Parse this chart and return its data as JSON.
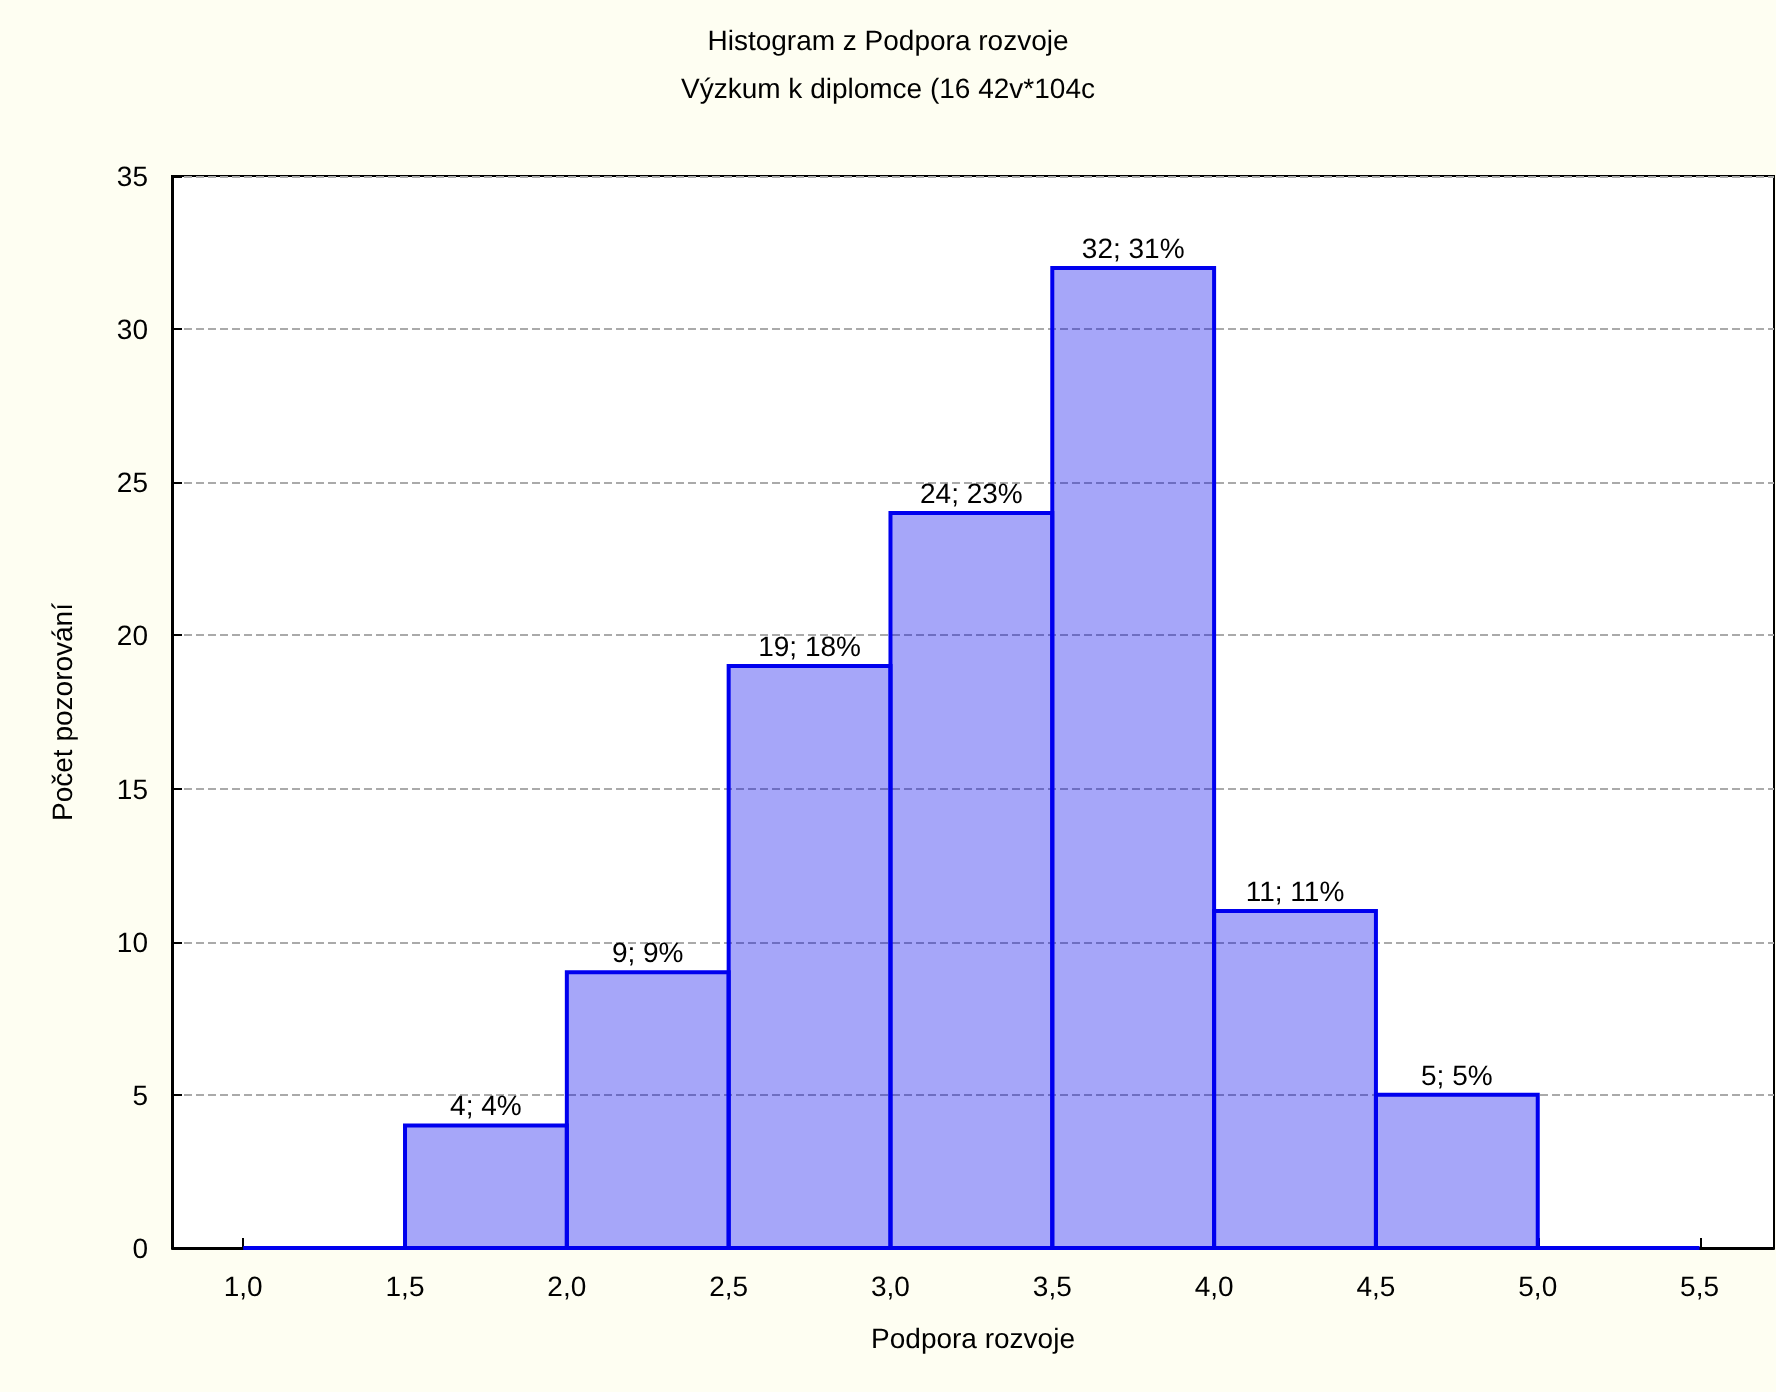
{
  "chart_data": {
    "type": "histogram",
    "title": "Histogram z Podpora rozvoje",
    "subtitle": "Výzkum k diplomce (16 42v*104c",
    "xlabel": "Podpora rozvoje",
    "ylabel": "Počet pozorování",
    "bins": [
      1.0,
      1.5,
      2.0,
      2.5,
      3.0,
      3.5,
      4.0,
      4.5,
      5.0,
      5.5
    ],
    "values": [
      0,
      4,
      9,
      19,
      24,
      32,
      11,
      5,
      0
    ],
    "value_labels": [
      null,
      "4; 4%",
      "9; 9%",
      "19; 18%",
      "24; 23%",
      "32; 31%",
      "11; 11%",
      "5; 5%",
      null
    ],
    "color": "#0000ee",
    "xlim": [
      0.78,
      5.73
    ],
    "xticks": [
      {
        "value": 1.0,
        "label": "1,0"
      },
      {
        "value": 1.5,
        "label": "1,5"
      },
      {
        "value": 2.0,
        "label": "2,0"
      },
      {
        "value": 2.5,
        "label": "2,5"
      },
      {
        "value": 3.0,
        "label": "3,0"
      },
      {
        "value": 3.5,
        "label": "3,5"
      },
      {
        "value": 4.0,
        "label": "4,0"
      },
      {
        "value": 4.5,
        "label": "4,5"
      },
      {
        "value": 5.0,
        "label": "5,0"
      },
      {
        "value": 5.5,
        "label": "5,5"
      }
    ],
    "ylim": [
      0,
      35
    ],
    "yticks": [
      0,
      5,
      10,
      15,
      20,
      25,
      30,
      35
    ],
    "grid": "y"
  }
}
